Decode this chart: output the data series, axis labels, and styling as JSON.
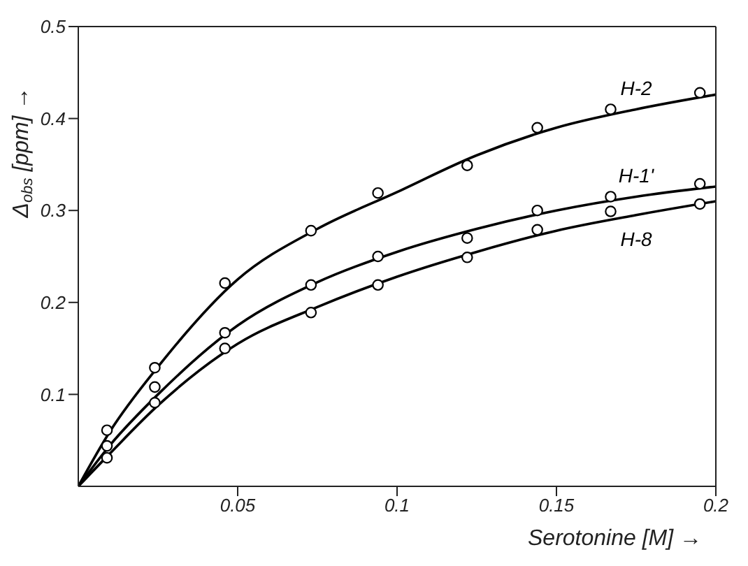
{
  "chart_data": {
    "type": "scatter",
    "xlabel": "Serotonine [M] →",
    "ylabel": "Δ$_{obs}$ [ppm] →",
    "xlim": [
      0,
      0.2
    ],
    "ylim": [
      0,
      0.5
    ],
    "xticks": [
      0.05,
      0.1,
      0.15,
      0.2
    ],
    "yticks": [
      0.1,
      0.2,
      0.3,
      0.4,
      0.5
    ],
    "series": [
      {
        "marker": "circle",
        "color": "#000000",
        "x": [
          0.009,
          0.024,
          0.046,
          0.073,
          0.094,
          0.122,
          0.144,
          0.167,
          0.195
        ],
        "values": [
          0.061,
          0.129,
          0.221,
          0.278,
          0.319,
          0.349,
          0.39,
          0.41,
          0.428
        ]
      },
      {
        "marker": "circle",
        "color": "#000000",
        "x": [
          0.009,
          0.024,
          0.046,
          0.073,
          0.094,
          0.122,
          0.144,
          0.167,
          0.195
        ],
        "values": [
          0.044,
          0.108,
          0.167,
          0.219,
          0.25,
          0.27,
          0.3,
          0.315,
          0.329
        ]
      },
      {
        "marker": "circle",
        "color": "#000000",
        "x": [
          0.009,
          0.024,
          0.046,
          0.073,
          0.094,
          0.122,
          0.144,
          0.167,
          0.195
        ],
        "values": [
          0.031,
          0.091,
          0.15,
          0.189,
          0.219,
          0.249,
          0.279,
          0.299,
          0.307
        ]
      },
      {
        "type": "line",
        "name": "H-2",
        "marker": "none",
        "line_style": "solid",
        "color": "#000000",
        "x": [
          0,
          0.01,
          0.025,
          0.05,
          0.075,
          0.1,
          0.125,
          0.15,
          0.175,
          0.2
        ],
        "values": [
          0,
          0.06,
          0.13,
          0.225,
          0.28,
          0.32,
          0.36,
          0.39,
          0.41,
          0.426
        ]
      },
      {
        "type": "line",
        "name": "H-1'",
        "marker": "none",
        "line_style": "solid",
        "color": "#000000",
        "x": [
          0,
          0.01,
          0.025,
          0.05,
          0.075,
          0.1,
          0.125,
          0.15,
          0.175,
          0.2
        ],
        "values": [
          0,
          0.045,
          0.1,
          0.175,
          0.222,
          0.255,
          0.28,
          0.3,
          0.315,
          0.326
        ]
      },
      {
        "type": "line",
        "name": "H-8",
        "marker": "none",
        "line_style": "solid",
        "color": "#000000",
        "x": [
          0,
          0.01,
          0.025,
          0.05,
          0.075,
          0.1,
          0.125,
          0.15,
          0.175,
          0.2
        ],
        "values": [
          0,
          0.036,
          0.088,
          0.155,
          0.195,
          0.228,
          0.255,
          0.278,
          0.295,
          0.31
        ]
      }
    ]
  }
}
